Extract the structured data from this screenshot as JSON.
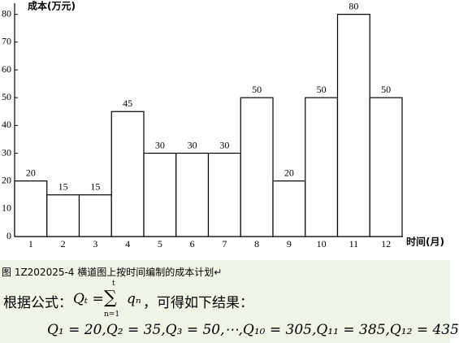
{
  "chart_data": {
    "type": "bar",
    "title": "成本(万元)",
    "x_label": "时间(月)",
    "categories": [
      "1",
      "2",
      "3",
      "4",
      "5",
      "6",
      "7",
      "8",
      "9",
      "10",
      "11",
      "12"
    ],
    "values": [
      20,
      15,
      15,
      45,
      30,
      30,
      30,
      50,
      20,
      50,
      80,
      50
    ],
    "color": "#ffffff",
    "ylim": [
      0,
      84
    ],
    "yticks": [
      0,
      10,
      20,
      30,
      40,
      50,
      60,
      70,
      80
    ],
    "grid": false
  },
  "caption": "图 1Z202025-4 横道图上按时间编制的成本计划↵",
  "formula": {
    "intro": "根据公式：",
    "lhs": "Qₜ =",
    "sum": "∑",
    "upper": "t",
    "lower": "n=1",
    "summand": "qₙ",
    "tail": "，可得如下结果：",
    "results": "Q₁ = 20,Q₂ = 35,Q₃ = 50,⋯,Q₁₀ = 305,Q₁₁ = 385,Q₁₂ = 435"
  }
}
